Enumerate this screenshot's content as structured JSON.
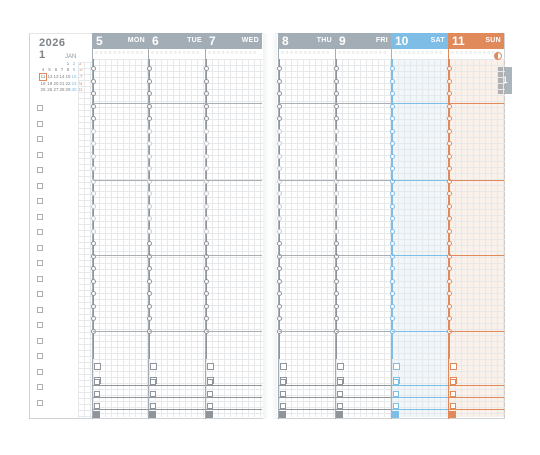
{
  "header": {
    "year": "2026",
    "month_number": "1",
    "month_name": "JAN"
  },
  "mini_calendar": {
    "weeks": [
      [
        "",
        "",
        "",
        "",
        "1",
        "2",
        "3"
      ],
      [
        "4",
        "5",
        "6",
        "7",
        "8",
        "9",
        "10"
      ],
      [
        "11",
        "12",
        "13",
        "14",
        "15",
        "16",
        "17"
      ],
      [
        "18",
        "19",
        "20",
        "21",
        "22",
        "23",
        "24"
      ],
      [
        "25",
        "26",
        "27",
        "28",
        "29",
        "30",
        "31"
      ]
    ],
    "circled_day": "11"
  },
  "days": [
    {
      "num": "5",
      "dow": "MON",
      "color": "#a3adb6",
      "page": "left"
    },
    {
      "num": "6",
      "dow": "TUE",
      "color": "#a3adb6",
      "page": "left"
    },
    {
      "num": "7",
      "dow": "WED",
      "color": "#a3adb6",
      "page": "left"
    },
    {
      "num": "8",
      "dow": "THU",
      "color": "#a3adb6",
      "page": "right"
    },
    {
      "num": "9",
      "dow": "FRI",
      "color": "#a3adb6",
      "page": "right"
    },
    {
      "num": "10",
      "dow": "SAT",
      "color": "#7dbde6",
      "page": "right"
    },
    {
      "num": "11",
      "dow": "SUN",
      "color": "#e08a5c",
      "page": "right"
    }
  ],
  "side_tab": {
    "label": "1"
  },
  "colors": {
    "weekday": "#a3adb6",
    "saturday": "#7dbde6",
    "sunday": "#e08a5c",
    "grid": "#e6e8ea"
  }
}
